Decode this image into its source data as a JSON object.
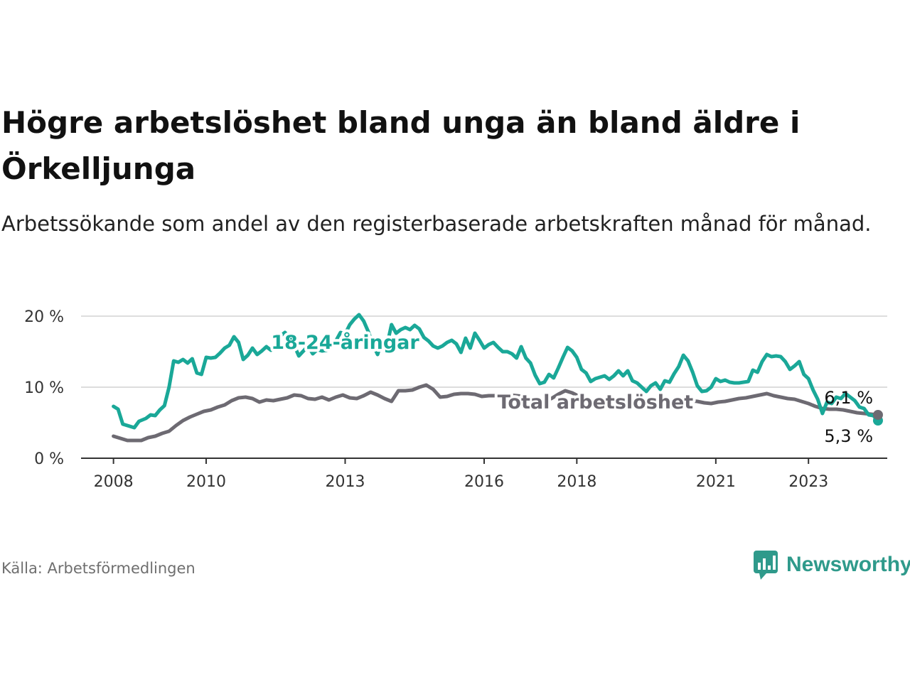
{
  "title": "Högre arbetslöshet bland unga än bland äldre i Örkelljunga",
  "subtitle": "Arbetssökande som andel av den registerbaserade arbetskraften månad för månad.",
  "source": "Källa: Arbetsförmedlingen",
  "brand": "Newsworthy",
  "colors": {
    "youth": "#1aa898",
    "total": "#6d6a72",
    "grid": "#dddddd",
    "axis": "#333333"
  },
  "chart_data": {
    "type": "line",
    "title": "Högre arbetslöshet bland unga än bland äldre i Örkelljunga",
    "xlabel": "",
    "ylabel": "",
    "ylim": [
      0,
      20
    ],
    "xlim": [
      2007.3,
      2024.7
    ],
    "yticks": [
      {
        "value": 0,
        "label": "0 %"
      },
      {
        "value": 10,
        "label": "10 %"
      },
      {
        "value": 20,
        "label": "20 %"
      }
    ],
    "xticks": [
      {
        "value": 2008,
        "label": "2008"
      },
      {
        "value": 2010,
        "label": "2010"
      },
      {
        "value": 2013,
        "label": "2013"
      },
      {
        "value": 2016,
        "label": "2016"
      },
      {
        "value": 2018,
        "label": "2018"
      },
      {
        "value": 2021,
        "label": "2021"
      },
      {
        "value": 2023,
        "label": "2023"
      }
    ],
    "series": [
      {
        "name": "18-24-åringar",
        "end_label": "5,3 %",
        "label_at": [
          2013.0,
          15.4
        ],
        "points": [
          [
            2008.0,
            7.3
          ],
          [
            2008.1,
            6.9
          ],
          [
            2008.2,
            4.8
          ],
          [
            2008.35,
            4.5
          ],
          [
            2008.45,
            4.3
          ],
          [
            2008.55,
            5.2
          ],
          [
            2008.7,
            5.6
          ],
          [
            2008.8,
            6.1
          ],
          [
            2008.9,
            6.0
          ],
          [
            2009.0,
            6.8
          ],
          [
            2009.1,
            7.4
          ],
          [
            2009.2,
            10.0
          ],
          [
            2009.3,
            13.7
          ],
          [
            2009.4,
            13.5
          ],
          [
            2009.5,
            13.9
          ],
          [
            2009.6,
            13.4
          ],
          [
            2009.7,
            14.0
          ],
          [
            2009.8,
            12.0
          ],
          [
            2009.9,
            11.8
          ],
          [
            2010.0,
            14.2
          ],
          [
            2010.1,
            14.1
          ],
          [
            2010.2,
            14.2
          ],
          [
            2010.3,
            14.8
          ],
          [
            2010.4,
            15.5
          ],
          [
            2010.5,
            15.9
          ],
          [
            2010.6,
            17.1
          ],
          [
            2010.7,
            16.3
          ],
          [
            2010.8,
            13.9
          ],
          [
            2010.9,
            14.5
          ],
          [
            2011.0,
            15.5
          ],
          [
            2011.1,
            14.6
          ],
          [
            2011.2,
            15.1
          ],
          [
            2011.3,
            15.7
          ],
          [
            2011.4,
            15.2
          ],
          [
            2011.5,
            15.6
          ],
          [
            2011.6,
            17.2
          ],
          [
            2011.7,
            17.7
          ],
          [
            2011.8,
            17.0
          ],
          [
            2011.9,
            15.9
          ],
          [
            2012.0,
            14.4
          ],
          [
            2012.1,
            15.1
          ],
          [
            2012.2,
            15.8
          ],
          [
            2012.3,
            14.7
          ],
          [
            2012.4,
            15.3
          ],
          [
            2012.5,
            15.1
          ],
          [
            2012.6,
            15.2
          ],
          [
            2012.7,
            16.2
          ],
          [
            2012.8,
            16.5
          ],
          [
            2012.9,
            17.7
          ],
          [
            2013.0,
            17.5
          ],
          [
            2013.1,
            18.8
          ],
          [
            2013.2,
            19.6
          ],
          [
            2013.3,
            20.2
          ],
          [
            2013.4,
            19.3
          ],
          [
            2013.5,
            17.8
          ],
          [
            2013.6,
            16.0
          ],
          [
            2013.7,
            14.6
          ],
          [
            2013.8,
            16.7
          ],
          [
            2013.9,
            15.8
          ],
          [
            2014.0,
            18.8
          ],
          [
            2014.1,
            17.6
          ],
          [
            2014.2,
            18.1
          ],
          [
            2014.3,
            18.4
          ],
          [
            2014.4,
            18.1
          ],
          [
            2014.5,
            18.7
          ],
          [
            2014.6,
            18.2
          ],
          [
            2014.7,
            17.0
          ],
          [
            2014.8,
            16.5
          ],
          [
            2014.9,
            15.8
          ],
          [
            2015.0,
            15.5
          ],
          [
            2015.1,
            15.8
          ],
          [
            2015.2,
            16.3
          ],
          [
            2015.3,
            16.6
          ],
          [
            2015.4,
            16.1
          ],
          [
            2015.5,
            14.9
          ],
          [
            2015.6,
            16.9
          ],
          [
            2015.7,
            15.5
          ],
          [
            2015.8,
            17.6
          ],
          [
            2015.9,
            16.6
          ],
          [
            2016.0,
            15.5
          ],
          [
            2016.1,
            16.0
          ],
          [
            2016.2,
            16.3
          ],
          [
            2016.3,
            15.6
          ],
          [
            2016.4,
            15.0
          ],
          [
            2016.5,
            15.0
          ],
          [
            2016.6,
            14.7
          ],
          [
            2016.7,
            14.1
          ],
          [
            2016.8,
            15.7
          ],
          [
            2016.9,
            14.1
          ],
          [
            2017.0,
            13.4
          ],
          [
            2017.1,
            11.7
          ],
          [
            2017.2,
            10.5
          ],
          [
            2017.3,
            10.7
          ],
          [
            2017.4,
            11.8
          ],
          [
            2017.5,
            11.3
          ],
          [
            2017.6,
            12.7
          ],
          [
            2017.7,
            14.2
          ],
          [
            2017.8,
            15.6
          ],
          [
            2017.9,
            15.1
          ],
          [
            2018.0,
            14.2
          ],
          [
            2018.1,
            12.5
          ],
          [
            2018.2,
            12.0
          ],
          [
            2018.3,
            10.8
          ],
          [
            2018.4,
            11.2
          ],
          [
            2018.5,
            11.4
          ],
          [
            2018.6,
            11.6
          ],
          [
            2018.7,
            11.1
          ],
          [
            2018.8,
            11.6
          ],
          [
            2018.9,
            12.3
          ],
          [
            2019.0,
            11.6
          ],
          [
            2019.1,
            12.3
          ],
          [
            2019.2,
            10.9
          ],
          [
            2019.3,
            10.6
          ],
          [
            2019.4,
            10.0
          ],
          [
            2019.5,
            9.4
          ],
          [
            2019.6,
            10.2
          ],
          [
            2019.7,
            10.6
          ],
          [
            2019.8,
            9.7
          ],
          [
            2019.9,
            10.9
          ],
          [
            2020.0,
            10.7
          ],
          [
            2020.1,
            11.9
          ],
          [
            2020.2,
            12.9
          ],
          [
            2020.3,
            14.5
          ],
          [
            2020.4,
            13.7
          ],
          [
            2020.5,
            12.1
          ],
          [
            2020.6,
            10.2
          ],
          [
            2020.7,
            9.4
          ],
          [
            2020.8,
            9.5
          ],
          [
            2020.9,
            10.0
          ],
          [
            2021.0,
            11.2
          ],
          [
            2021.1,
            10.8
          ],
          [
            2021.2,
            11.0
          ],
          [
            2021.3,
            10.7
          ],
          [
            2021.4,
            10.6
          ],
          [
            2021.5,
            10.6
          ],
          [
            2021.6,
            10.7
          ],
          [
            2021.7,
            10.8
          ],
          [
            2021.8,
            12.4
          ],
          [
            2021.9,
            12.1
          ],
          [
            2022.0,
            13.6
          ],
          [
            2022.1,
            14.6
          ],
          [
            2022.2,
            14.3
          ],
          [
            2022.3,
            14.4
          ],
          [
            2022.4,
            14.3
          ],
          [
            2022.5,
            13.6
          ],
          [
            2022.6,
            12.5
          ],
          [
            2022.7,
            13.0
          ],
          [
            2022.8,
            13.6
          ],
          [
            2022.9,
            11.8
          ],
          [
            2023.0,
            11.2
          ],
          [
            2023.1,
            9.6
          ],
          [
            2023.2,
            8.3
          ],
          [
            2023.3,
            6.3
          ],
          [
            2023.4,
            7.9
          ],
          [
            2023.5,
            7.7
          ],
          [
            2023.6,
            8.6
          ],
          [
            2023.7,
            8.4
          ],
          [
            2023.8,
            9.1
          ],
          [
            2023.9,
            8.6
          ],
          [
            2024.0,
            8.1
          ],
          [
            2024.1,
            7.2
          ],
          [
            2024.2,
            7.0
          ],
          [
            2024.3,
            6.1
          ],
          [
            2024.4,
            6.0
          ],
          [
            2024.5,
            5.3
          ]
        ]
      },
      {
        "name": "Total arbetslöshet",
        "end_label": "6,1 %",
        "label_at": [
          2018.4,
          7.0
        ],
        "points": [
          [
            2008.0,
            3.1
          ],
          [
            2008.15,
            2.8
          ],
          [
            2008.3,
            2.5
          ],
          [
            2008.45,
            2.5
          ],
          [
            2008.6,
            2.5
          ],
          [
            2008.75,
            2.9
          ],
          [
            2008.9,
            3.1
          ],
          [
            2009.05,
            3.5
          ],
          [
            2009.2,
            3.8
          ],
          [
            2009.35,
            4.6
          ],
          [
            2009.5,
            5.3
          ],
          [
            2009.65,
            5.8
          ],
          [
            2009.8,
            6.2
          ],
          [
            2009.95,
            6.6
          ],
          [
            2010.1,
            6.8
          ],
          [
            2010.25,
            7.2
          ],
          [
            2010.4,
            7.5
          ],
          [
            2010.55,
            8.1
          ],
          [
            2010.7,
            8.5
          ],
          [
            2010.85,
            8.6
          ],
          [
            2011.0,
            8.4
          ],
          [
            2011.15,
            7.9
          ],
          [
            2011.3,
            8.2
          ],
          [
            2011.45,
            8.1
          ],
          [
            2011.6,
            8.3
          ],
          [
            2011.75,
            8.5
          ],
          [
            2011.9,
            8.9
          ],
          [
            2012.05,
            8.8
          ],
          [
            2012.2,
            8.4
          ],
          [
            2012.35,
            8.3
          ],
          [
            2012.5,
            8.6
          ],
          [
            2012.65,
            8.2
          ],
          [
            2012.8,
            8.6
          ],
          [
            2012.95,
            8.9
          ],
          [
            2013.1,
            8.5
          ],
          [
            2013.25,
            8.4
          ],
          [
            2013.4,
            8.8
          ],
          [
            2013.55,
            9.3
          ],
          [
            2013.7,
            8.9
          ],
          [
            2013.85,
            8.4
          ],
          [
            2014.0,
            8.0
          ],
          [
            2014.15,
            9.5
          ],
          [
            2014.3,
            9.5
          ],
          [
            2014.45,
            9.6
          ],
          [
            2014.6,
            10.0
          ],
          [
            2014.75,
            10.3
          ],
          [
            2014.9,
            9.7
          ],
          [
            2015.05,
            8.6
          ],
          [
            2015.2,
            8.7
          ],
          [
            2015.35,
            9.0
          ],
          [
            2015.5,
            9.1
          ],
          [
            2015.65,
            9.1
          ],
          [
            2015.8,
            9.0
          ],
          [
            2015.95,
            8.7
          ],
          [
            2016.1,
            8.8
          ],
          [
            2016.25,
            8.8
          ],
          [
            2016.4,
            8.8
          ],
          [
            2016.55,
            8.9
          ],
          [
            2016.7,
            8.8
          ],
          [
            2016.85,
            8.7
          ],
          [
            2017.0,
            8.4
          ],
          [
            2017.15,
            8.1
          ],
          [
            2017.3,
            8.1
          ],
          [
            2017.45,
            8.4
          ],
          [
            2017.6,
            9.0
          ],
          [
            2017.75,
            9.5
          ],
          [
            2017.9,
            9.2
          ],
          [
            2018.05,
            8.7
          ],
          [
            2018.2,
            8.4
          ],
          [
            2018.35,
            7.9
          ],
          [
            2018.5,
            7.6
          ],
          [
            2018.65,
            7.5
          ],
          [
            2018.8,
            7.6
          ],
          [
            2018.95,
            7.9
          ],
          [
            2019.1,
            7.7
          ],
          [
            2019.25,
            7.6
          ],
          [
            2019.4,
            7.9
          ],
          [
            2019.55,
            8.1
          ],
          [
            2019.7,
            8.0
          ],
          [
            2019.85,
            7.8
          ],
          [
            2020.0,
            7.6
          ],
          [
            2020.15,
            7.8
          ],
          [
            2020.3,
            8.0
          ],
          [
            2020.45,
            8.1
          ],
          [
            2020.6,
            8.0
          ],
          [
            2020.75,
            7.8
          ],
          [
            2020.9,
            7.7
          ],
          [
            2021.05,
            7.9
          ],
          [
            2021.2,
            8.0
          ],
          [
            2021.35,
            8.2
          ],
          [
            2021.5,
            8.4
          ],
          [
            2021.65,
            8.5
          ],
          [
            2021.8,
            8.7
          ],
          [
            2021.95,
            8.9
          ],
          [
            2022.1,
            9.1
          ],
          [
            2022.25,
            8.8
          ],
          [
            2022.4,
            8.6
          ],
          [
            2022.55,
            8.4
          ],
          [
            2022.7,
            8.3
          ],
          [
            2022.85,
            8.0
          ],
          [
            2023.0,
            7.7
          ],
          [
            2023.15,
            7.3
          ],
          [
            2023.3,
            7.0
          ],
          [
            2023.45,
            6.9
          ],
          [
            2023.6,
            6.9
          ],
          [
            2023.75,
            6.8
          ],
          [
            2023.9,
            6.6
          ],
          [
            2024.05,
            6.4
          ],
          [
            2024.2,
            6.3
          ],
          [
            2024.35,
            6.2
          ],
          [
            2024.5,
            6.1
          ]
        ]
      }
    ]
  }
}
